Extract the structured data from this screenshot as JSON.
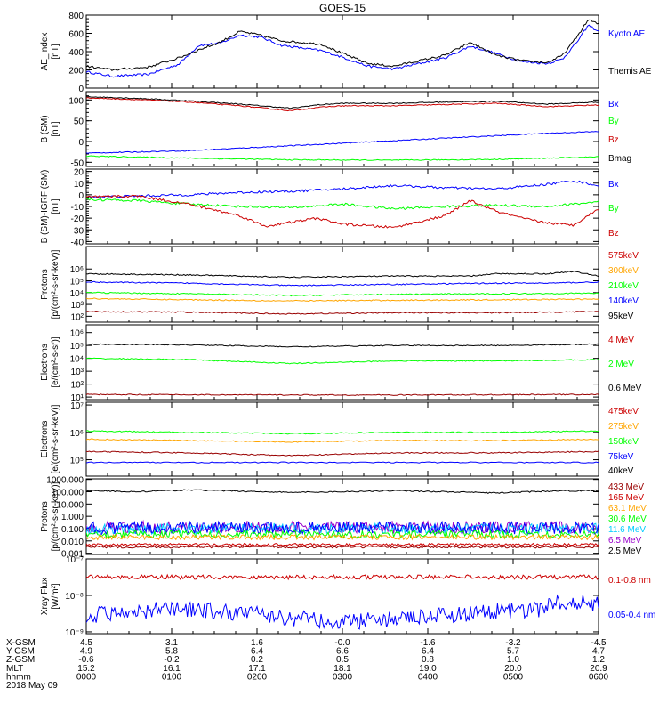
{
  "title": "GOES-15",
  "colors": {
    "black": "#000000",
    "blue": "#0000ff",
    "green": "#00ff00",
    "red": "#cc0000",
    "orange": "#ffa500",
    "cyan": "#00ccff",
    "purple": "#9900cc",
    "darkred": "#990000"
  },
  "chart_data": [
    {
      "type": "line",
      "ylabel": "AE_index",
      "unit": "[nT]",
      "ylim": [
        0,
        800
      ],
      "yticks": [
        "0",
        "200",
        "400",
        "600",
        "800"
      ],
      "tickvals": [
        0,
        200,
        400,
        600,
        800
      ],
      "legend": [
        {
          "label": "Kyoto AE",
          "color": "#0000ff"
        },
        {
          "label": "Themis AE",
          "color": "#000000"
        }
      ],
      "series": [
        {
          "name": "Kyoto AE",
          "color": "#0000ff",
          "x": [
            0,
            0.05,
            0.12,
            0.18,
            0.22,
            0.26,
            0.3,
            0.34,
            0.38,
            0.42,
            0.46,
            0.5,
            0.55,
            0.6,
            0.65,
            0.7,
            0.75,
            0.8,
            0.85,
            0.9,
            0.93,
            0.96,
            0.98,
            1
          ],
          "y": [
            180,
            130,
            150,
            260,
            470,
            490,
            580,
            560,
            470,
            440,
            410,
            340,
            240,
            210,
            270,
            330,
            460,
            380,
            290,
            270,
            320,
            520,
            690,
            620
          ]
        },
        {
          "name": "Themis AE",
          "color": "#000000",
          "x": [
            0,
            0.05,
            0.12,
            0.18,
            0.22,
            0.26,
            0.3,
            0.34,
            0.38,
            0.42,
            0.46,
            0.5,
            0.55,
            0.6,
            0.65,
            0.7,
            0.75,
            0.8,
            0.85,
            0.9,
            0.93,
            0.96,
            0.98,
            1
          ],
          "y": [
            240,
            200,
            230,
            330,
            420,
            500,
            620,
            580,
            520,
            500,
            480,
            380,
            270,
            240,
            300,
            360,
            500,
            360,
            300,
            280,
            360,
            580,
            750,
            700
          ]
        }
      ]
    },
    {
      "type": "line",
      "ylabel": "B (SM)",
      "unit": "[nT]",
      "ylim": [
        -60,
        120
      ],
      "yticks": [
        "-50",
        "0",
        "50",
        "100"
      ],
      "tickvals": [
        -50,
        0,
        50,
        100
      ],
      "legend": [
        {
          "label": "Bx",
          "color": "#0000ff"
        },
        {
          "label": "By",
          "color": "#00ff00"
        },
        {
          "label": "Bz",
          "color": "#cc0000"
        },
        {
          "label": "Bmag",
          "color": "#000000"
        }
      ],
      "series": [
        {
          "name": "Bmag",
          "color": "#000000",
          "x": [
            0,
            0.1,
            0.2,
            0.3,
            0.4,
            0.45,
            0.5,
            0.6,
            0.7,
            0.8,
            0.9,
            1
          ],
          "y": [
            108,
            104,
            98,
            90,
            80,
            88,
            92,
            92,
            95,
            97,
            90,
            95
          ]
        },
        {
          "name": "Bz",
          "color": "#cc0000",
          "x": [
            0,
            0.1,
            0.2,
            0.3,
            0.4,
            0.45,
            0.5,
            0.6,
            0.7,
            0.8,
            0.9,
            1
          ],
          "y": [
            105,
            101,
            95,
            86,
            74,
            82,
            86,
            86,
            89,
            92,
            84,
            88
          ]
        },
        {
          "name": "Bx",
          "color": "#0000ff",
          "x": [
            0,
            0.1,
            0.2,
            0.3,
            0.4,
            0.5,
            0.6,
            0.7,
            0.8,
            0.9,
            1
          ],
          "y": [
            -28,
            -25,
            -22,
            -16,
            -10,
            -4,
            2,
            8,
            14,
            20,
            24
          ]
        },
        {
          "name": "By",
          "color": "#00ff00",
          "x": [
            0,
            0.2,
            0.4,
            0.6,
            0.8,
            1
          ],
          "y": [
            -35,
            -40,
            -44,
            -45,
            -43,
            -37
          ]
        }
      ]
    },
    {
      "type": "line",
      "ylabel": "B (SM)-IGRF (SM)",
      "unit": "[nT]",
      "ylim": [
        -42,
        22
      ],
      "yticks": [
        "-40",
        "-30",
        "-20",
        "-10",
        "0",
        "10",
        "20"
      ],
      "tickvals": [
        -40,
        -30,
        -20,
        -10,
        0,
        10,
        20
      ],
      "legend": [
        {
          "label": "Bx",
          "color": "#0000ff"
        },
        {
          "label": "By",
          "color": "#00ff00"
        },
        {
          "label": "Bz",
          "color": "#cc0000"
        }
      ],
      "series": [
        {
          "name": "Bx",
          "color": "#0000ff",
          "x": [
            0,
            0.1,
            0.2,
            0.3,
            0.4,
            0.5,
            0.6,
            0.7,
            0.8,
            0.85,
            0.9,
            0.95,
            1
          ],
          "y": [
            -2,
            -1,
            0,
            2,
            3,
            5,
            8,
            6,
            5,
            7,
            9,
            12,
            8
          ]
        },
        {
          "name": "By",
          "color": "#00ff00",
          "x": [
            0,
            0.1,
            0.2,
            0.3,
            0.4,
            0.5,
            0.6,
            0.7,
            0.8,
            0.9,
            1
          ],
          "y": [
            -4,
            -5,
            -8,
            -10,
            -11,
            -8,
            -12,
            -10,
            -9,
            -10,
            -6
          ]
        },
        {
          "name": "Bz",
          "color": "#cc0000",
          "x": [
            0,
            0.1,
            0.2,
            0.3,
            0.35,
            0.45,
            0.5,
            0.6,
            0.7,
            0.75,
            0.8,
            0.85,
            0.9,
            0.95,
            1
          ],
          "y": [
            -2,
            -1,
            -8,
            -18,
            -27,
            -20,
            -25,
            -28,
            -18,
            -5,
            -14,
            -20,
            -24,
            -26,
            -12
          ]
        }
      ]
    },
    {
      "type": "line",
      "ylabel": "Protons",
      "unit": "[p/(cm²-s-sr-keV)]",
      "yscale": "log",
      "ylim": [
        1.5,
        7.9
      ],
      "yticks": [
        "10²",
        "10³",
        "10⁴",
        "10⁵",
        "10⁶"
      ],
      "tickvals": [
        2,
        3,
        4,
        5,
        6
      ],
      "legend": [
        {
          "label": "575keV",
          "color": "#cc0000"
        },
        {
          "label": "300keV",
          "color": "#ffa500"
        },
        {
          "label": "210keV",
          "color": "#00ff00"
        },
        {
          "label": "140keV",
          "color": "#0000ff"
        },
        {
          "label": "95keV",
          "color": "#000000"
        }
      ],
      "series": [
        {
          "name": "95keV",
          "color": "#000000",
          "x": [
            0,
            0.2,
            0.4,
            0.6,
            0.75,
            0.8,
            0.9,
            0.95,
            1
          ],
          "y": [
            5.6,
            5.5,
            5.3,
            5.4,
            5.4,
            5.6,
            5.6,
            5.8,
            5.4
          ]
        },
        {
          "name": "140keV",
          "color": "#0000ff",
          "x": [
            0,
            0.2,
            0.4,
            0.6,
            0.8,
            0.9,
            1
          ],
          "y": [
            4.9,
            4.8,
            4.6,
            4.7,
            4.8,
            4.8,
            4.9
          ]
        },
        {
          "name": "210keV",
          "color": "#00ff00",
          "x": [
            0,
            0.2,
            0.4,
            0.6,
            0.8,
            1
          ],
          "y": [
            4.0,
            3.9,
            3.75,
            3.85,
            3.9,
            3.95
          ]
        },
        {
          "name": "300keV",
          "color": "#ffa500",
          "x": [
            0,
            0.2,
            0.4,
            0.6,
            0.8,
            1
          ],
          "y": [
            3.5,
            3.4,
            3.3,
            3.35,
            3.4,
            3.45
          ]
        },
        {
          "name": "575keV",
          "color": "#990000",
          "x": [
            0,
            0.2,
            0.4,
            0.6,
            0.8,
            1
          ],
          "y": [
            2.4,
            2.35,
            2.2,
            2.3,
            2.3,
            2.4
          ]
        }
      ]
    },
    {
      "type": "line",
      "ylabel": "Electrons",
      "unit": "[e/(cm²-s-sr)]",
      "yscale": "log",
      "ylim": [
        0.8,
        6.6
      ],
      "yticks": [
        "10¹",
        "10²",
        "10³",
        "10⁴",
        "10⁵",
        "10⁶"
      ],
      "tickvals": [
        1,
        2,
        3,
        4,
        5,
        6
      ],
      "legend": [
        {
          "label": "4 MeV",
          "color": "#cc0000"
        },
        {
          "label": "2 MeV",
          "color": "#00ff00"
        },
        {
          "label": "0.6 MeV",
          "color": "#000000"
        }
      ],
      "series": [
        {
          "name": "0.6 MeV",
          "color": "#000000",
          "x": [
            0,
            0.2,
            0.4,
            0.6,
            0.8,
            1
          ],
          "y": [
            5.1,
            5.05,
            4.9,
            5.0,
            5.0,
            5.1
          ]
        },
        {
          "name": "2 MeV",
          "color": "#00ff00",
          "x": [
            0,
            0.2,
            0.4,
            0.6,
            0.8,
            1
          ],
          "y": [
            4.0,
            3.9,
            3.6,
            3.8,
            3.8,
            3.9
          ]
        },
        {
          "name": "4 MeV",
          "color": "#990000",
          "x": [
            0,
            0.5,
            1
          ],
          "y": [
            1.2,
            1.15,
            1.2
          ]
        }
      ]
    },
    {
      "type": "line",
      "ylabel": "Electrons",
      "unit": "[e/(cm²-s-sr-keV)]",
      "yscale": "log",
      "ylim": [
        4.4,
        7.1
      ],
      "yticks": [
        "10⁵",
        "10⁶",
        "10⁷"
      ],
      "tickvals": [
        5,
        6,
        7
      ],
      "legend": [
        {
          "label": "475keV",
          "color": "#cc0000"
        },
        {
          "label": "275keV",
          "color": "#ffa500"
        },
        {
          "label": "150keV",
          "color": "#00ff00"
        },
        {
          "label": "75keV",
          "color": "#0000ff"
        },
        {
          "label": "40keV",
          "color": "#000000"
        }
      ],
      "series": [
        {
          "name": "150keV",
          "color": "#00ff00",
          "x": [
            0,
            0.2,
            0.4,
            0.6,
            0.8,
            1
          ],
          "y": [
            6.05,
            6.0,
            5.95,
            6.0,
            6.0,
            6.05
          ]
        },
        {
          "name": "275keV",
          "color": "#ffa500",
          "x": [
            0,
            0.2,
            0.4,
            0.6,
            0.8,
            1
          ],
          "y": [
            5.75,
            5.7,
            5.65,
            5.7,
            5.7,
            5.75
          ]
        },
        {
          "name": "475keV",
          "color": "#990000",
          "x": [
            0,
            0.2,
            0.4,
            0.6,
            0.8,
            1
          ],
          "y": [
            5.3,
            5.25,
            5.15,
            5.25,
            5.25,
            5.3
          ]
        }
      ]
    },
    {
      "type": "line",
      "ylabel": "Protons",
      "unit": "[p/(cm²-s-sr-keV)]",
      "yscale": "log",
      "ylim": [
        -3.1,
        3.05
      ],
      "yticks": [
        "0.001",
        "0.010",
        "0.100",
        "1.000",
        "10.000",
        "100.000",
        "1000.000"
      ],
      "tickvals": [
        -3,
        -2,
        -1,
        0,
        1,
        2,
        3
      ],
      "legend": [
        {
          "label": "433 MeV",
          "color": "#990000"
        },
        {
          "label": "165 MeV",
          "color": "#cc0000"
        },
        {
          "label": "63.1 MeV",
          "color": "#ffa500"
        },
        {
          "label": "30.6 MeV",
          "color": "#00ff00"
        },
        {
          "label": "11.6 MeV",
          "color": "#00ccff"
        },
        {
          "label": "6.5 MeV",
          "color": "#9900cc"
        },
        {
          "label": "2.5 MeV",
          "color": "#000000"
        }
      ],
      "series": [
        {
          "name": "2.5 MeV",
          "color": "#000000",
          "x": [
            0,
            0.1,
            0.2,
            0.3,
            0.4,
            0.5,
            0.6,
            0.7,
            0.8,
            0.9,
            1
          ],
          "y": [
            2.1,
            2.0,
            2.15,
            2.05,
            1.95,
            2.0,
            2.1,
            2.0,
            1.9,
            2.05,
            2.1
          ]
        }
      ]
    },
    {
      "type": "line",
      "ylabel": "Xray Flux",
      "unit": "[W/m²]",
      "yscale": "log",
      "ylim": [
        -9.05,
        -7
      ],
      "yticks": [
        "10⁻⁹",
        "10⁻⁸",
        "10⁻⁷"
      ],
      "tickvals": [
        -9,
        -8,
        -7
      ],
      "legend": [
        {
          "label": "0.1-0.8 nm",
          "color": "#cc0000"
        },
        {
          "label": "0.05-0.4 nm",
          "color": "#0000ff"
        }
      ],
      "series": []
    }
  ],
  "xaxis": {
    "rows": [
      {
        "label": "X-GSM",
        "values": [
          "4.5",
          "3.1",
          "1.6",
          "-0.0",
          "-1.6",
          "-3.2",
          "-4.5"
        ]
      },
      {
        "label": "Y-GSM",
        "values": [
          "4.9",
          "5.8",
          "6.4",
          "6.6",
          "6.4",
          "5.7",
          "4.7"
        ]
      },
      {
        "label": "Z-GSM",
        "values": [
          "-0.6",
          "-0.2",
          "0.2",
          "0.5",
          "0.8",
          "1.0",
          "1.2"
        ]
      },
      {
        "label": "MLT",
        "values": [
          "15.2",
          "16.1",
          "17.1",
          "18.1",
          "19.0",
          "20.0",
          "20.9"
        ]
      },
      {
        "label": "hhmm",
        "values": [
          "0000",
          "0100",
          "0200",
          "0300",
          "0400",
          "0500",
          "0600"
        ]
      }
    ],
    "date": "2018 May 09"
  }
}
